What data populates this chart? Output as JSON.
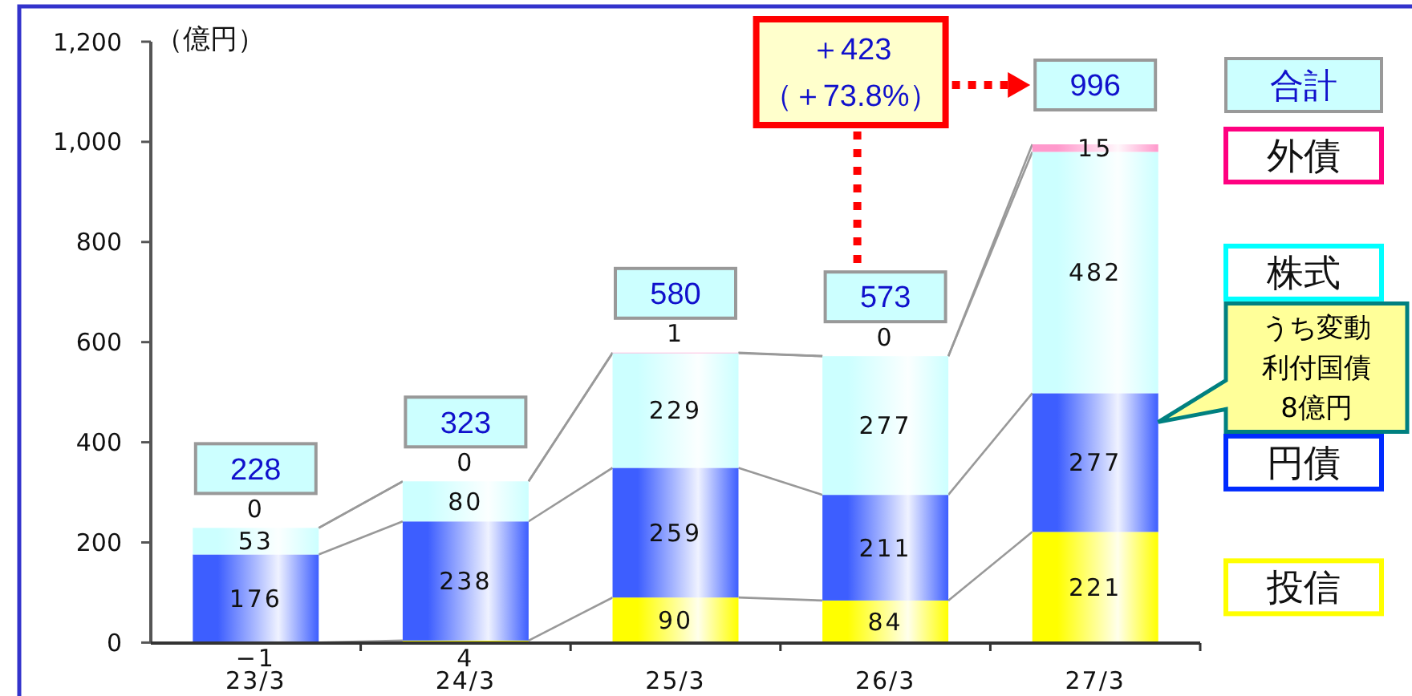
{
  "chart_data": {
    "type": "bar",
    "stacked": true,
    "categories": [
      "23/3",
      "24/3",
      "25/3",
      "26/3",
      "27/3"
    ],
    "series": [
      {
        "name": "投信",
        "color": "#ffff00",
        "values": [
          -1,
          4,
          90,
          84,
          221
        ]
      },
      {
        "name": "円債",
        "color": "#3d5eff",
        "values": [
          176,
          238,
          259,
          211,
          277
        ]
      },
      {
        "name": "株式",
        "color": "#ccffff",
        "values": [
          53,
          80,
          229,
          277,
          482
        ]
      },
      {
        "name": "外債",
        "color": "#ff99cc",
        "values": [
          0,
          0,
          1,
          0,
          15
        ]
      }
    ],
    "ylabel": "（億円）",
    "ylim": [
      -1,
      1200
    ],
    "yticks": [
      0,
      200,
      400,
      600,
      800,
      {
        "value": 1000,
        "label": "1,000"
      },
      {
        "value": 1200,
        "label": "1,200"
      }
    ],
    "data_labels": true,
    "totals": [
      "228",
      "323",
      "580",
      "573",
      "996"
    ],
    "legend": "right",
    "annotations": [
      "合計",
      "＋423\n（＋73.8%）",
      "うち変動利付国債8億円"
    ]
  }
}
